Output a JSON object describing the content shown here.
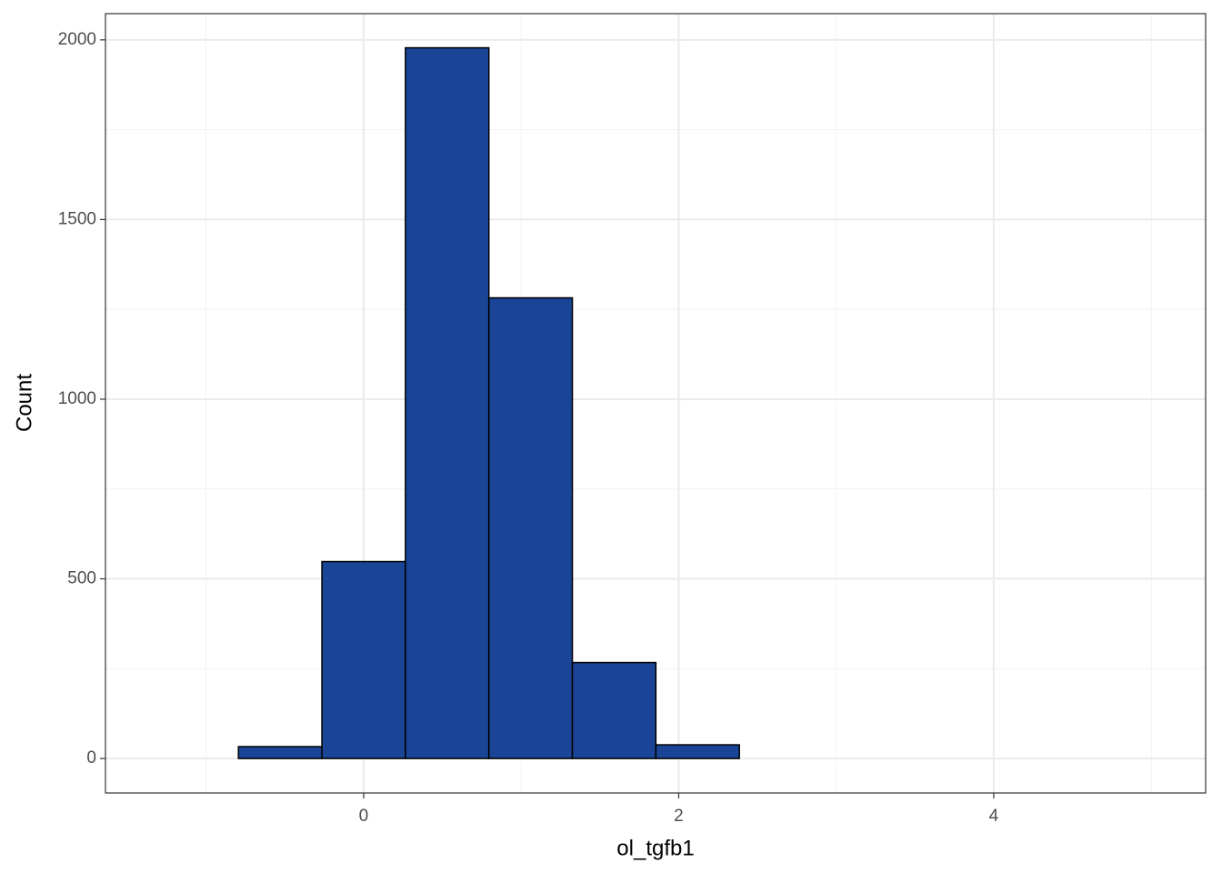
{
  "chart_data": {
    "type": "histogram",
    "x_label": "ol_tgfb1",
    "y_label": "Count",
    "bins": [
      -1.325,
      -0.795,
      -0.265,
      0.265,
      0.795,
      1.325,
      1.855,
      2.385,
      2.915,
      3.445,
      3.975,
      4.505,
      5.035
    ],
    "counts": [
      0,
      33,
      548,
      1978,
      1282,
      267,
      38,
      0,
      0,
      0,
      0,
      0
    ],
    "color": "#1a4496",
    "edgecolor": "#000000",
    "xlim": [
      -1.639,
      5.345
    ],
    "ylim": [
      -96,
      2073
    ],
    "xticks": [
      0,
      2,
      4
    ],
    "yticks": [
      0,
      500,
      1000,
      1500,
      2000
    ],
    "xminor": [
      -1,
      1,
      3,
      5
    ],
    "yminor": [
      250,
      750,
      1250,
      1750
    ],
    "grid": true
  }
}
